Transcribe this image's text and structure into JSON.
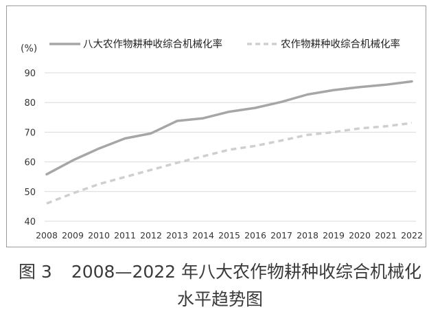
{
  "chart_data": {
    "type": "line",
    "title": "",
    "ylabel": "(%)",
    "xlabel": "",
    "x": [
      "2008",
      "2009",
      "2010",
      "2011",
      "2012",
      "2013",
      "2014",
      "2015",
      "2016",
      "2017",
      "2018",
      "2019",
      "2020",
      "2021",
      "2022"
    ],
    "ylim": [
      40,
      90
    ],
    "yticks": [
      40,
      50,
      60,
      70,
      80,
      90
    ],
    "grid": true,
    "legend_position": "top",
    "series": [
      {
        "name": "八大农作物耕种收综合机械化率",
        "style": "solid",
        "color": "#a6a6a6",
        "values": [
          55.8,
          60.5,
          64.5,
          67.9,
          69.6,
          73.8,
          74.7,
          76.9,
          78.2,
          80.2,
          82.7,
          84.2,
          85.2,
          86.0,
          87.1
        ]
      },
      {
        "name": "农作物耕种收综合机械化率",
        "style": "dashed",
        "color": "#cfcfcf",
        "values": [
          46.0,
          49.4,
          52.5,
          54.9,
          57.3,
          59.7,
          61.9,
          64.1,
          65.4,
          67.2,
          69.1,
          70.0,
          71.3,
          72.0,
          73.1
        ]
      }
    ]
  },
  "caption": {
    "figure_number": "图 3",
    "line1": "2008—2022 年八大农作物耕种收综合机械化",
    "line2": "水平趋势图"
  },
  "colors": {
    "grid": "#d9d9d9",
    "axis_text": "#333333",
    "frame": "#9a9a9a"
  }
}
